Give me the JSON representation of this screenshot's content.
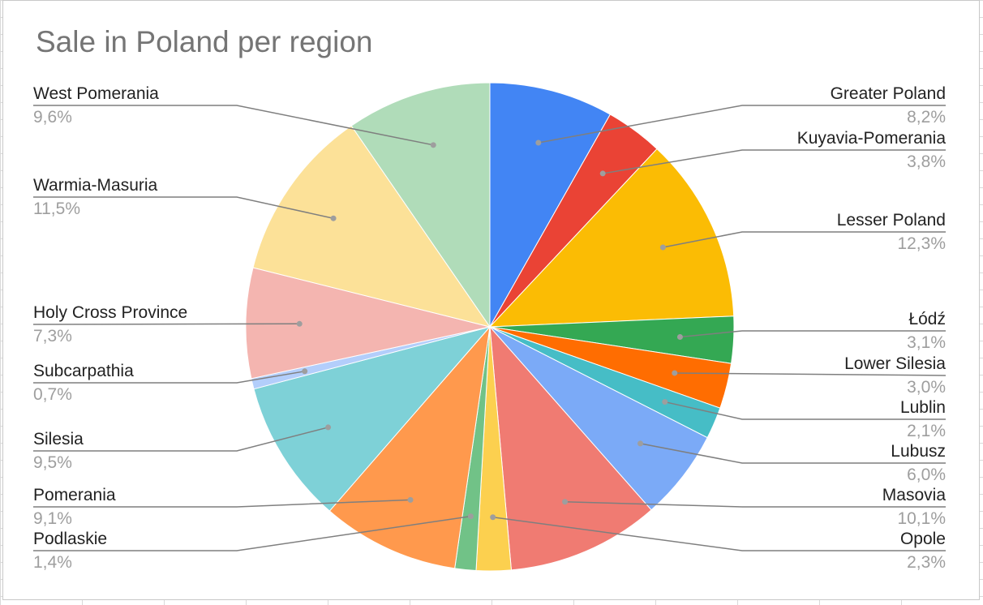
{
  "chart_data": {
    "type": "pie",
    "title": "Sale in Poland per region",
    "start_angle_deg": 0,
    "direction": "clockwise",
    "legend": "labels-with-leader-lines",
    "slices": [
      {
        "name": "Greater Poland",
        "value_label": "8,2%",
        "value": 8.2,
        "color": "#4285F4"
      },
      {
        "name": "Kuyavia-Pomerania",
        "value_label": "3,8%",
        "value": 3.8,
        "color": "#EA4335"
      },
      {
        "name": "Lesser Poland",
        "value_label": "12,3%",
        "value": 12.3,
        "color": "#FBBC04"
      },
      {
        "name": "Łódź",
        "value_label": "3,1%",
        "value": 3.1,
        "color": "#34A853"
      },
      {
        "name": "Lower Silesia",
        "value_label": "3,0%",
        "value": 3.0,
        "color": "#FF6D01"
      },
      {
        "name": "Lublin",
        "value_label": "2,1%",
        "value": 2.1,
        "color": "#46BDC6"
      },
      {
        "name": "Lubusz",
        "value_label": "6,0%",
        "value": 6.0,
        "color": "#7BAAF7"
      },
      {
        "name": "Masovia",
        "value_label": "10,1%",
        "value": 10.1,
        "color": "#F07B72"
      },
      {
        "name": "Opole",
        "value_label": "2,3%",
        "value": 2.3,
        "color": "#FCD04F"
      },
      {
        "name": "Podlaskie",
        "value_label": "1,4%",
        "value": 1.4,
        "color": "#71C287"
      },
      {
        "name": "Pomerania",
        "value_label": "9,1%",
        "value": 9.1,
        "color": "#FF994D"
      },
      {
        "name": "Silesia",
        "value_label": "9,5%",
        "value": 9.5,
        "color": "#7ED1D7"
      },
      {
        "name": "Subcarpathia",
        "value_label": "0,7%",
        "value": 0.7,
        "color": "#B3CEFB"
      },
      {
        "name": "Holy Cross Province",
        "value_label": "7,3%",
        "value": 7.3,
        "color": "#F4B5B0"
      },
      {
        "name": "Warmia-Masuria",
        "value_label": "11,5%",
        "value": 11.5,
        "color": "#FCE198"
      },
      {
        "name": "West Pomerania",
        "value_label": "9,6%",
        "value": 9.6,
        "color": "#B0DCB9"
      }
    ]
  }
}
